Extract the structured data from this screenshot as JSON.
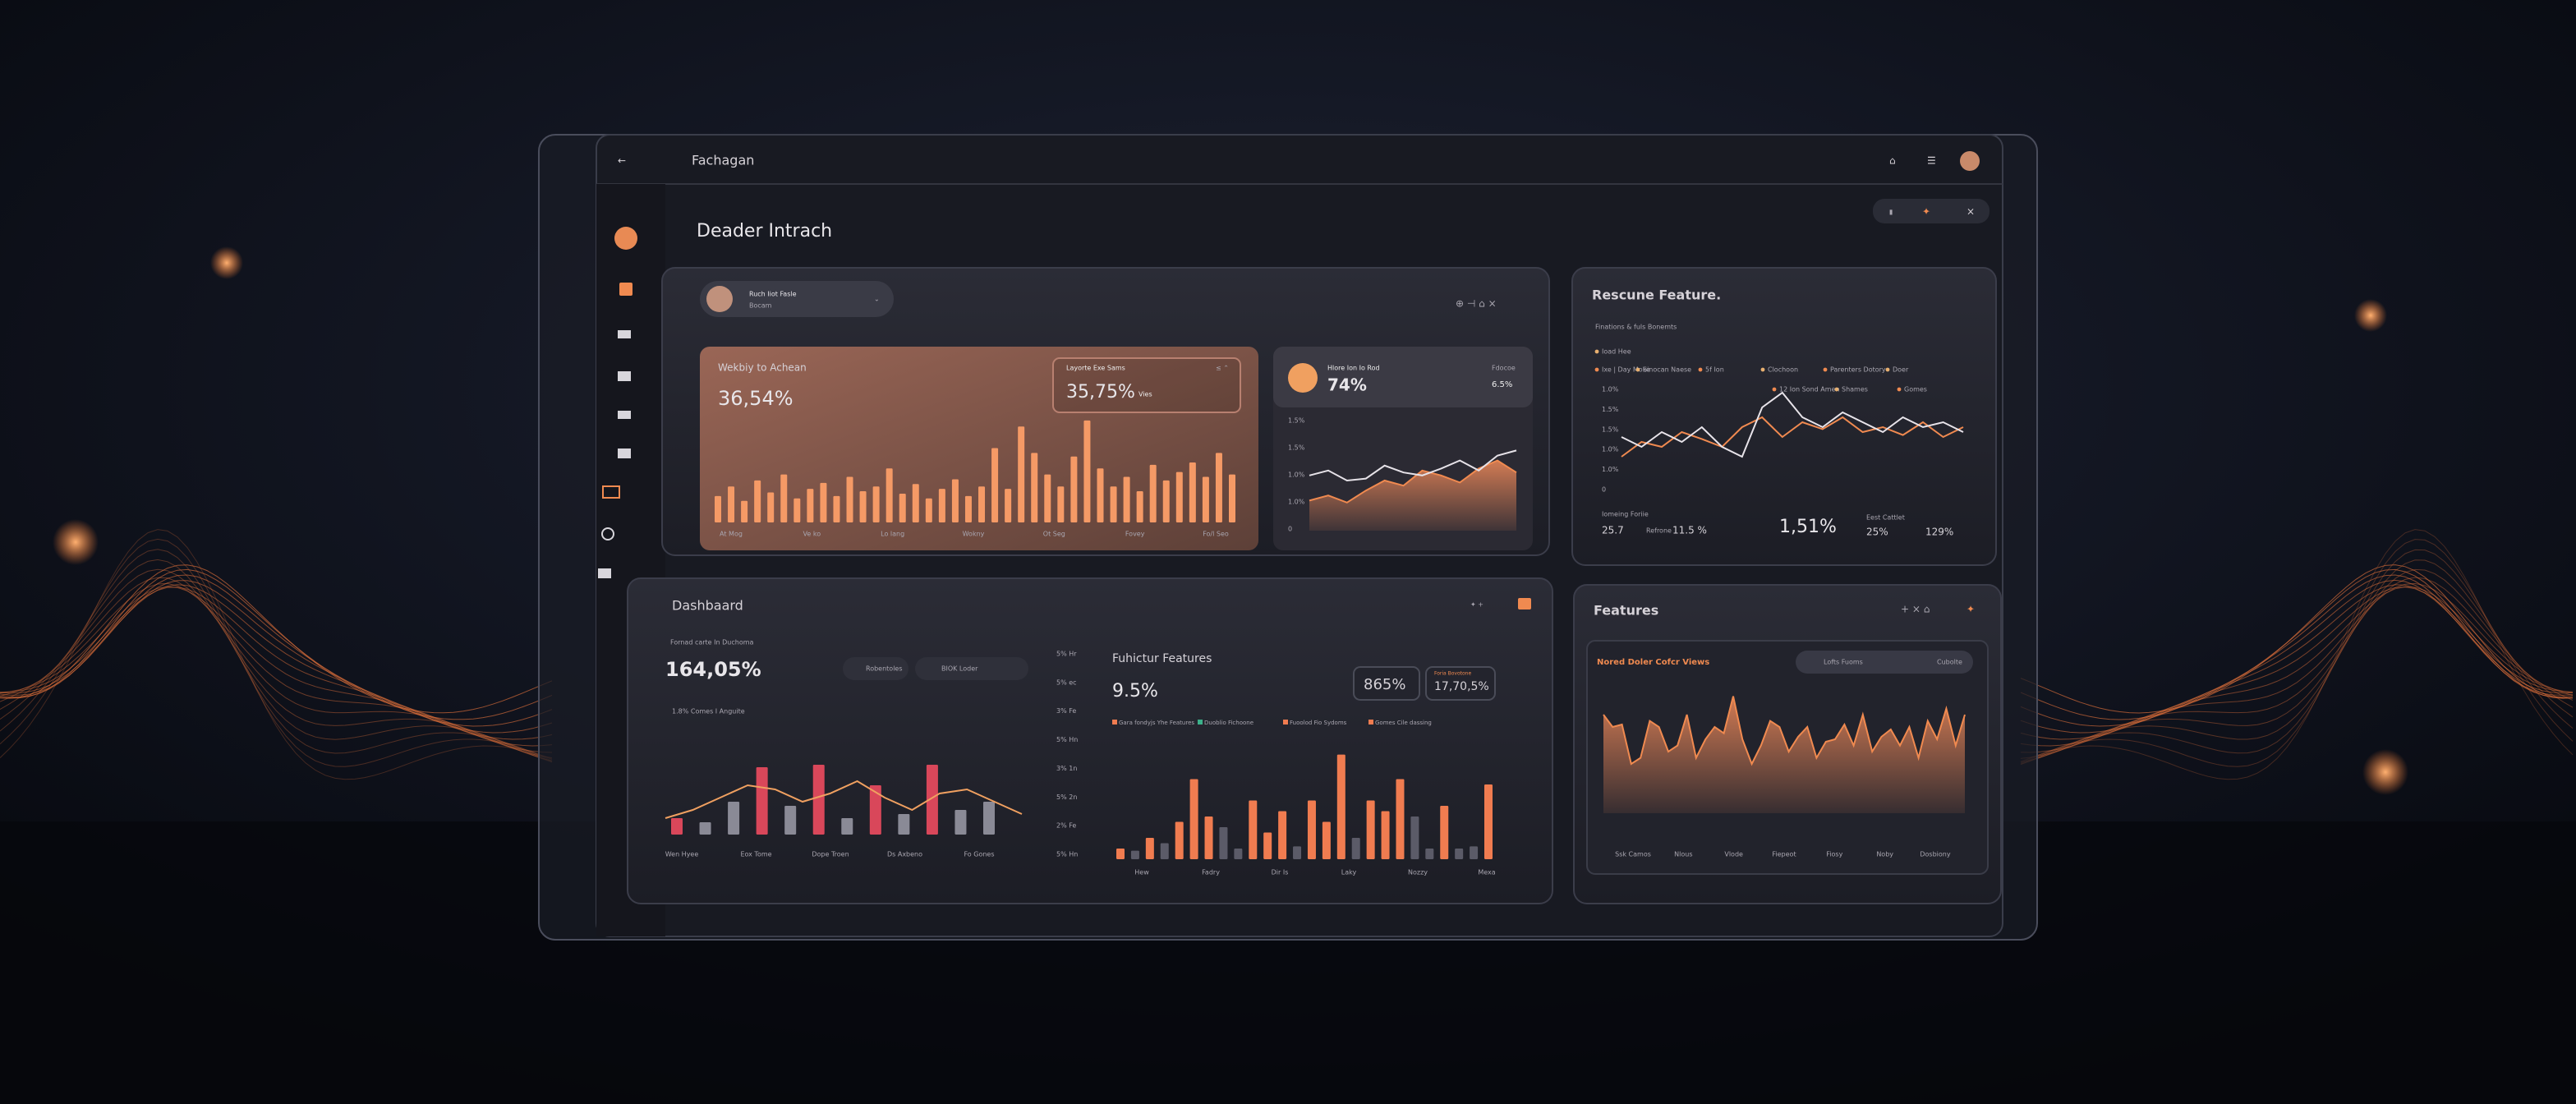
{
  "header": {
    "app": "Fachagan",
    "page_title": "Deader Intrach"
  },
  "profile": {
    "name": "Ruch Iiot Fasle",
    "role": "Bocam"
  },
  "welcome": {
    "title": "Wekbiy to Achean",
    "value": "36,54%",
    "sub_title": "Layorte Exe Sams",
    "sub_value": "35,75%",
    "sub_unit": "Vies",
    "x_labels": [
      "At Mog",
      "Ve ko",
      "Lo lang",
      "Wokny",
      "Ot Seg",
      "Fovey",
      "Fo/l Seo"
    ],
    "range": [
      0,
      100
    ],
    "bars": [
      22,
      30,
      18,
      35,
      25,
      40,
      20,
      28,
      33,
      22,
      38,
      26,
      30,
      45,
      24,
      32,
      20,
      28,
      36,
      22,
      30,
      62,
      28,
      80,
      58,
      40,
      30,
      55,
      85,
      45,
      30,
      38,
      26,
      48,
      35,
      42,
      50,
      38,
      58,
      40
    ]
  },
  "status": {
    "title": "Hlore Ion Io Rod",
    "value": "74%",
    "side_label": "Fdocoe",
    "side_value": "6.5%",
    "y_labels": [
      "1.5%",
      "1.5%",
      "1.0%",
      "1.0%",
      "0"
    ],
    "range": [
      0,
      100
    ],
    "area": [
      30,
      35,
      28,
      40,
      50,
      45,
      60,
      55,
      48,
      62,
      70,
      58
    ],
    "line": [
      55,
      60,
      50,
      52,
      65,
      58,
      55,
      62,
      70,
      60,
      75,
      80
    ]
  },
  "resource": {
    "title": "Rescune Feature.",
    "subtitle": "Finations & fuls Bonemts",
    "legend": [
      "Ioad Hee",
      "Ixe | Day Moke",
      "Sinocan Naese",
      "5f Ion",
      "Clochoon",
      "Parenters Dotory",
      "Doer",
      "12 Ion Sond Amen",
      "Shames",
      "Gomes"
    ],
    "y_labels": [
      "1.0%",
      "1.5%",
      "1.5%",
      "1.0%",
      "1.0%",
      "0"
    ],
    "range": [
      0,
      100
    ],
    "lines": [
      [
        20,
        35,
        30,
        45,
        38,
        30,
        50,
        60,
        40,
        55,
        48,
        60,
        45,
        50,
        42,
        55,
        40,
        50
      ],
      [
        40,
        30,
        45,
        35,
        50,
        30,
        20,
        70,
        85,
        60,
        50,
        65,
        55,
        45,
        60,
        50,
        55,
        45
      ]
    ],
    "stats": [
      "Iomeing Foriie",
      "25.7",
      "Refrone",
      "11.5 %",
      "1,51%",
      "Eest Cattlet",
      "25%",
      "129%"
    ]
  },
  "dashboard": {
    "title": "Dashbaard",
    "subtitle": "Fornad carte In Duchoma",
    "value": "164,05%",
    "chips": [
      "Robentoles",
      "BIOK Loder"
    ],
    "legend": "1.8% Comes I Anguite",
    "x_labels": [
      "Wen Hyee",
      "Eox Tome",
      "Dope Troen",
      "Ds Axbeno",
      "Fo Gones"
    ],
    "range": [
      0,
      100
    ],
    "bars": [
      20,
      15,
      40,
      82,
      35,
      85,
      20,
      60,
      25,
      85,
      30,
      40
    ],
    "colors": [
      "#d9475a",
      "#8a8a96",
      "#8a8a96",
      "#d9475a",
      "#8a8a96",
      "#d9475a",
      "#8a8a96",
      "#d9475a",
      "#8a8a96",
      "#d9475a",
      "#8a8a96",
      "#8a8a96"
    ],
    "line": [
      20,
      30,
      45,
      60,
      55,
      40,
      50,
      65,
      45,
      30,
      50,
      55,
      40,
      25
    ],
    "y_labels": [
      "5% Hr",
      "5% ec",
      "3% Fe",
      "5% Hn",
      "3% 1n",
      "5% 2n",
      "2% Fe",
      "5% Hn"
    ]
  },
  "functions": {
    "title": "Fuhictur Features",
    "value": "9.5%",
    "badge1": "865%",
    "badge2_label": "Foria Bovotone",
    "badge2": "17,70,5%",
    "legend": [
      "Gara fondyjs Yhe Features",
      "Duoblio Fichoone",
      "Fuoolod Fio Sydoms",
      "Gomes Cile dassing"
    ],
    "x_labels": [
      "Hew",
      "Fadry",
      "Dir Is",
      "Laky",
      "Nozzy",
      "Mexa"
    ],
    "range": [
      0,
      100
    ],
    "bars": [
      10,
      8,
      20,
      15,
      35,
      75,
      40,
      30,
      10,
      55,
      25,
      45,
      12,
      55,
      35,
      98,
      20,
      55,
      45,
      75,
      40,
      10,
      50,
      10,
      12,
      70
    ],
    "colors": [
      "#f07c50",
      "#5b5b68",
      "#f07c50",
      "#5b5b68",
      "#f07c50",
      "#f07c50",
      "#f07c50",
      "#5b5b68",
      "#5b5b68",
      "#f07c50",
      "#f07c50",
      "#f07c50",
      "#5b5b68",
      "#f07c50",
      "#f07c50",
      "#f07c50",
      "#5b5b68",
      "#f07c50",
      "#f07c50",
      "#f07c50",
      "#5b5b68",
      "#5b5b68",
      "#f07c50",
      "#5b5b68",
      "#5b5b68",
      "#f07c50"
    ]
  },
  "features": {
    "title": "Features",
    "card_title": "Nored Doler Cofcr Views",
    "chip": "Lofts Fuoms",
    "chip2": "Cubolte",
    "x_labels": [
      "Ssk Camos",
      "Nlous",
      "Vlode",
      "Fiepeot",
      "Fiosy",
      "Noby",
      "Dosbiony"
    ],
    "range": [
      0,
      100
    ],
    "line": [
      80,
      70,
      72,
      40,
      45,
      75,
      70,
      50,
      55,
      80,
      45,
      60,
      70,
      65,
      95,
      60,
      40,
      55,
      75,
      70,
      50,
      62,
      70,
      45,
      58,
      60,
      72,
      55,
      80,
      50,
      62,
      68,
      55,
      70,
      45,
      75,
      60,
      85,
      55,
      80
    ]
  }
}
